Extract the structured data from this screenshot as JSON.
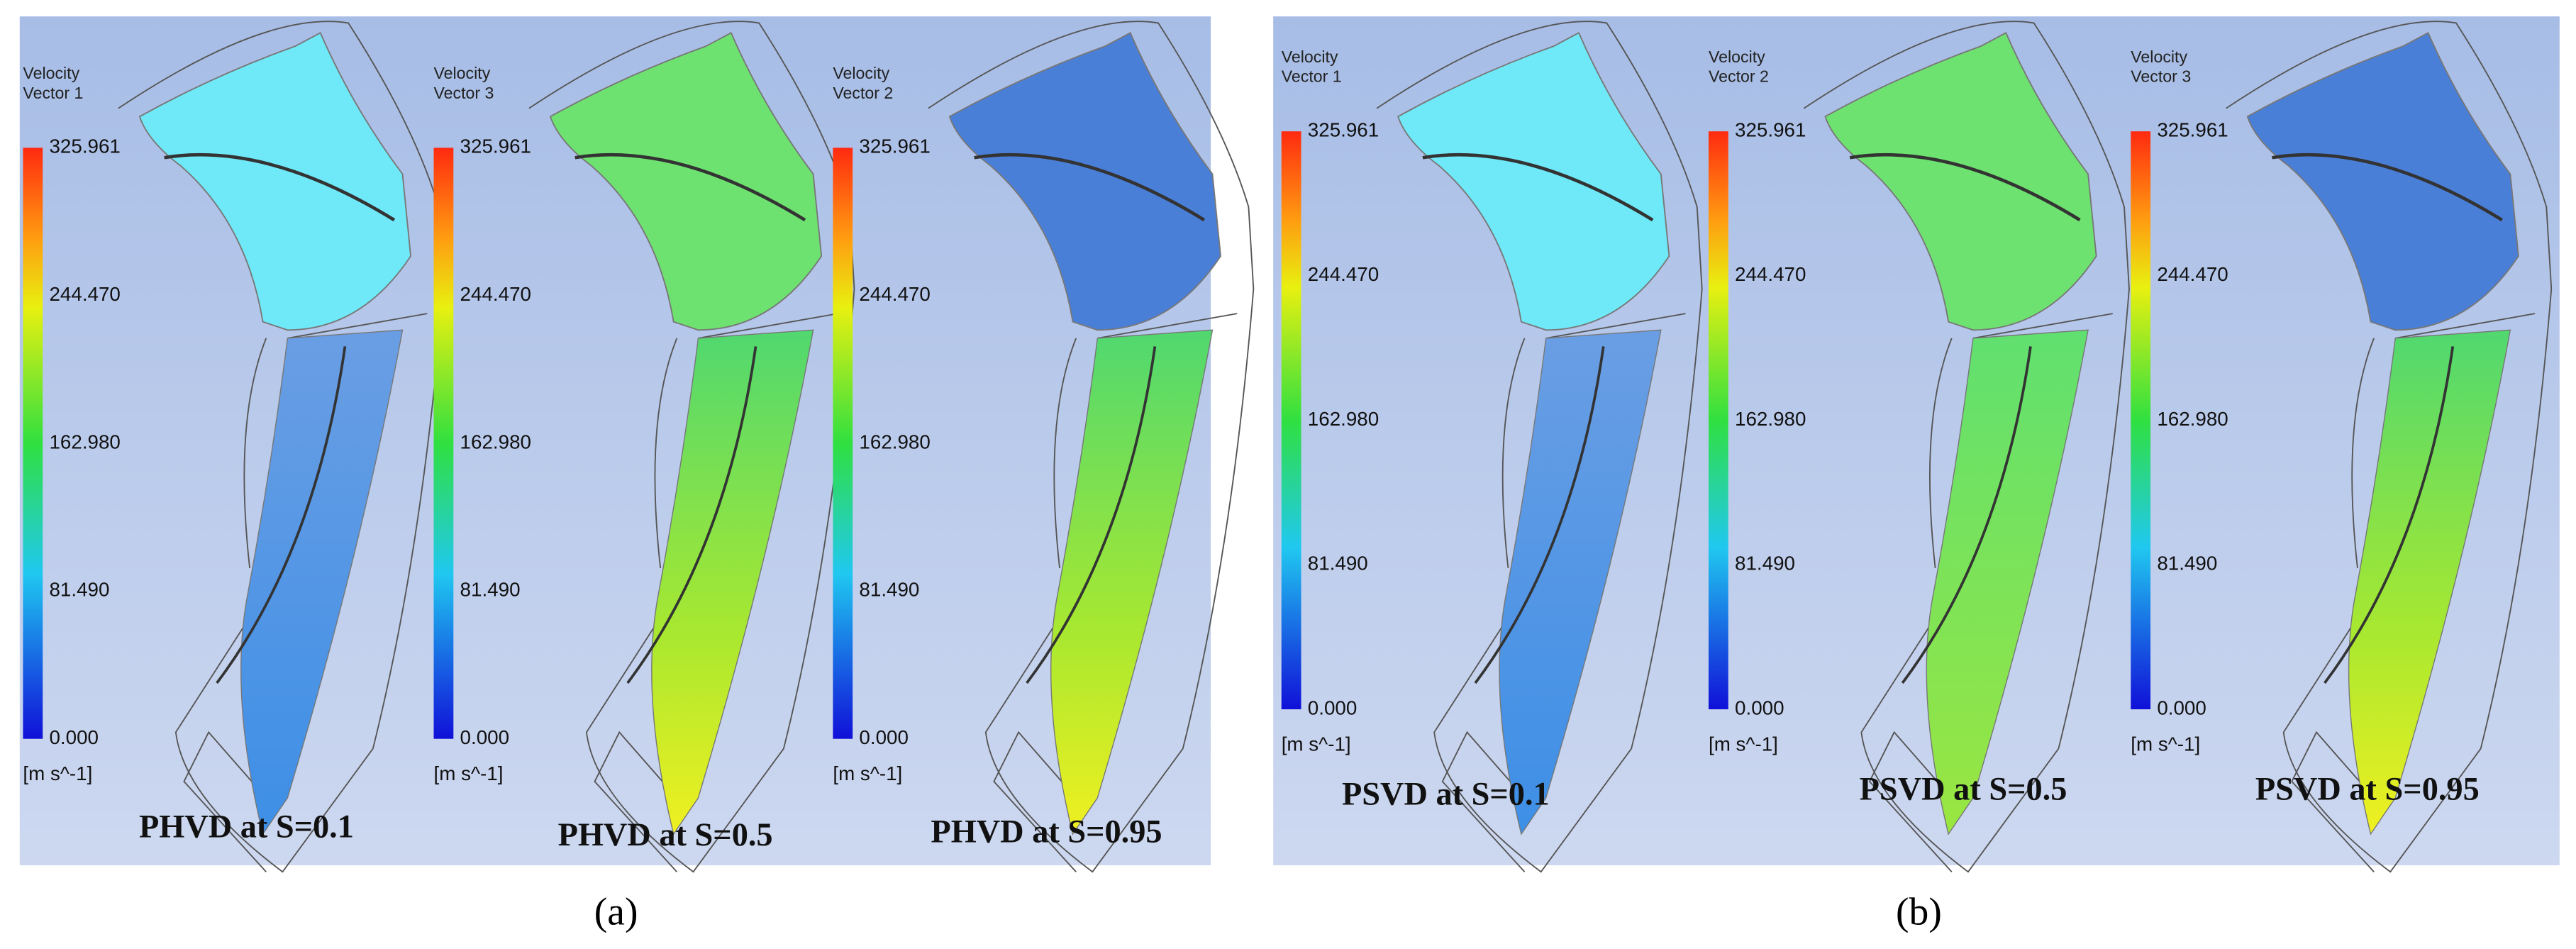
{
  "panels": [
    {
      "label": "(a)",
      "plots": [
        {
          "legend_title": [
            "Velocity",
            "Vector 1"
          ],
          "ticks": [
            "325.961",
            "244.470",
            "162.980",
            "81.490",
            "0.000"
          ],
          "unit": "[m s^-1]",
          "caption": "PHVD at S=0.1"
        },
        {
          "legend_title": [
            "Velocity",
            "Vector 3"
          ],
          "ticks": [
            "325.961",
            "244.470",
            "162.980",
            "81.490",
            "0.000"
          ],
          "unit": "[m s^-1]",
          "caption": "PHVD at S=0.5"
        },
        {
          "legend_title": [
            "Velocity",
            "Vector 2"
          ],
          "ticks": [
            "325.961",
            "244.470",
            "162.980",
            "81.490",
            "0.000"
          ],
          "unit": "[m s^-1]",
          "caption": "PHVD at S=0.95"
        }
      ]
    },
    {
      "label": "(b)",
      "plots": [
        {
          "legend_title": [
            "Velocity",
            "Vector 1"
          ],
          "ticks": [
            "325.961",
            "244.470",
            "162.980",
            "81.490",
            "0.000"
          ],
          "unit": "[m s^-1]",
          "caption": "PSVD at S=0.1"
        },
        {
          "legend_title": [
            "Velocity",
            "Vector 2"
          ],
          "ticks": [
            "325.961",
            "244.470",
            "162.980",
            "81.490",
            "0.000"
          ],
          "unit": "[m s^-1]",
          "caption": "PSVD at S=0.5"
        },
        {
          "legend_title": [
            "Velocity",
            "Vector 3"
          ],
          "ticks": [
            "325.961",
            "244.470",
            "162.980",
            "81.490",
            "0.000"
          ],
          "unit": "[m s^-1]",
          "caption": "PSVD at S=0.95"
        }
      ]
    }
  ]
}
